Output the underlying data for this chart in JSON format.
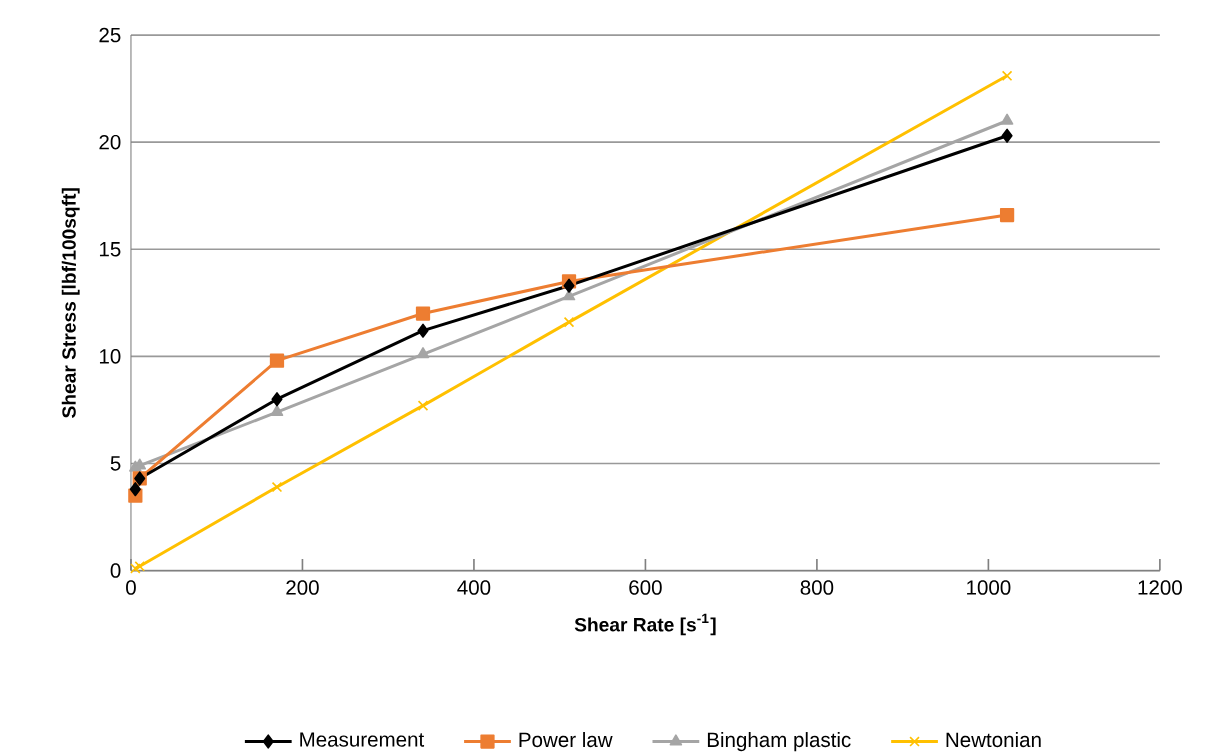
{
  "chart_data": {
    "type": "line",
    "xlabel": "Shear Rate [s$^{-1}$]",
    "ylabel": "Shear Stress  [lbf/100sqft]",
    "x": [
      5.11,
      10.22,
      170.3,
      340.6,
      510.9,
      1021.8
    ],
    "series": [
      {
        "name": "Measurement",
        "color": "#000000",
        "marker": "diamond",
        "values": [
          3.8,
          4.3,
          8.0,
          11.2,
          13.3,
          20.3
        ]
      },
      {
        "name": "Power law",
        "color": "#ed7d31",
        "marker": "square",
        "values": [
          3.5,
          4.3,
          9.8,
          12.0,
          13.5,
          16.6
        ]
      },
      {
        "name": "Bingham plastic",
        "color": "#a5a5a5",
        "marker": "triangle",
        "values": [
          4.8,
          4.9,
          7.4,
          10.1,
          12.8,
          21.0
        ]
      },
      {
        "name": "Newtonian",
        "color": "#ffc000",
        "marker": "cross",
        "values": [
          0.1,
          0.2,
          3.9,
          7.7,
          11.6,
          23.1
        ]
      }
    ],
    "xlim": [
      0,
      1200
    ],
    "xticks": [
      0,
      200,
      400,
      600,
      800,
      1000,
      1200
    ],
    "ylim": [
      0,
      25
    ],
    "yticks": [
      0,
      5,
      10,
      15,
      20,
      25
    ],
    "grid": "y",
    "legend": "bottom",
    "line_style": "solid"
  }
}
